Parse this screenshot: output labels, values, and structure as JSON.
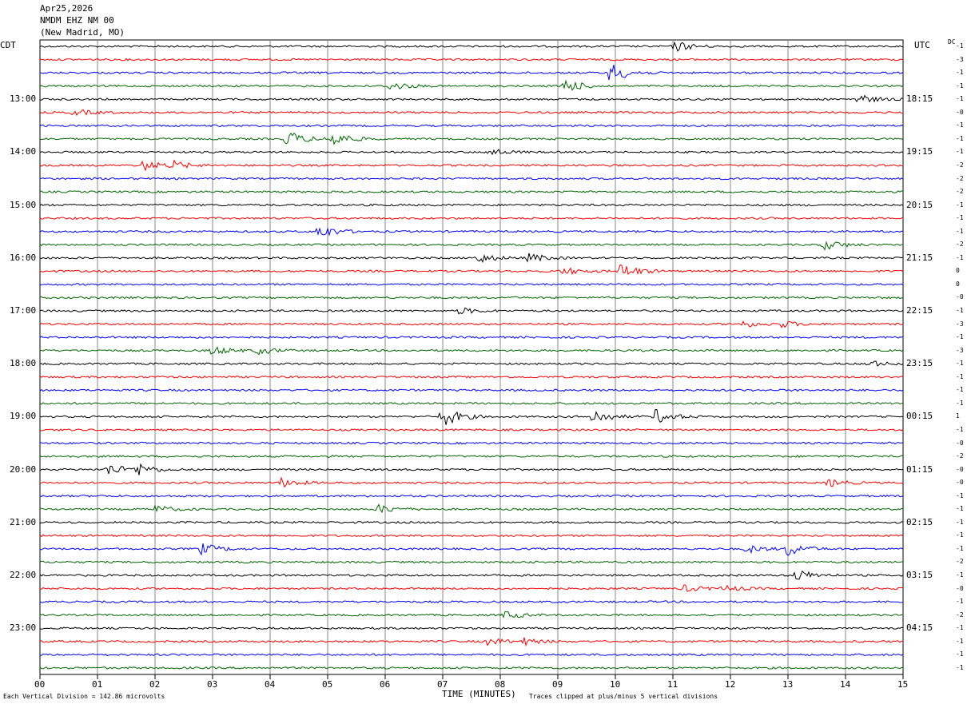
{
  "header": {
    "date": "Apr25,2026",
    "station": "NMDM EHZ NM 00",
    "location": "(New Madrid, MO)"
  },
  "left_label": "CDT",
  "right_label": "UTC",
  "dc_label": "DC",
  "x_axis": {
    "label": "TIME (MINUTES)",
    "ticks": [
      "00",
      "01",
      "02",
      "03",
      "04",
      "05",
      "06",
      "07",
      "08",
      "09",
      "10",
      "11",
      "12",
      "13",
      "14",
      "15"
    ]
  },
  "left_times": [
    "13:00",
    "14:00",
    "15:00",
    "16:00",
    "17:00",
    "18:00",
    "19:00",
    "20:00",
    "21:00",
    "22:00",
    "23:00"
  ],
  "right_times": [
    "18:15",
    "19:15",
    "20:15",
    "21:15",
    "22:15",
    "23:15",
    "00:15",
    "01:15",
    "02:15",
    "03:15",
    "04:15"
  ],
  "dc_values": [
    "-1",
    "-3",
    "-1",
    "-1",
    "-1",
    "-0",
    "-1",
    "-1",
    "-1",
    "-2",
    "-2",
    "-2",
    "-1",
    "-1",
    "-1",
    "-2",
    "-1",
    "0",
    "0",
    "-0",
    "-1",
    "-3",
    "-1",
    "-3",
    "-1",
    "-1",
    "-1",
    "-1",
    "1",
    "-1",
    "-0",
    "-2",
    "-0",
    "-0",
    "-1",
    "-1",
    "-1",
    "-1",
    "-1",
    "-2",
    "-1",
    "-0",
    "-1",
    "-2",
    "-1",
    "-1",
    "-1",
    "-1"
  ],
  "trace_colors": [
    "#000000",
    "#ff0000",
    "#0000ff",
    "#006400"
  ],
  "footer": {
    "scale": "Each Vertical Division =  142.86 microvolts",
    "clip": "Traces clipped at plus/minus 5 vertical divisions"
  },
  "events": [
    {
      "trace": 0,
      "minute": 11.05,
      "strength": 0.8
    },
    {
      "trace": 2,
      "minute": 9.92,
      "strength": 1.6
    },
    {
      "trace": 3,
      "minute": 9.1,
      "strength": 1.2
    },
    {
      "trace": 3,
      "minute": 6.1,
      "strength": 0.7
    },
    {
      "trace": 4,
      "minute": 14.2,
      "strength": 0.8
    },
    {
      "trace": 5,
      "minute": 0.6,
      "strength": 0.5
    },
    {
      "trace": 7,
      "minute": 4.3,
      "strength": 1.3
    },
    {
      "trace": 7,
      "minute": 5.1,
      "strength": 1.2
    },
    {
      "trace": 8,
      "minute": 7.8,
      "strength": 0.6
    },
    {
      "trace": 9,
      "minute": 1.8,
      "strength": 0.8
    },
    {
      "trace": 9,
      "minute": 2.3,
      "strength": 0.6
    },
    {
      "trace": 14,
      "minute": 4.85,
      "strength": 1.1
    },
    {
      "trace": 15,
      "minute": 13.65,
      "strength": 0.8
    },
    {
      "trace": 16,
      "minute": 7.6,
      "strength": 0.8
    },
    {
      "trace": 16,
      "minute": 8.5,
      "strength": 0.7
    },
    {
      "trace": 17,
      "minute": 10.1,
      "strength": 1.2
    },
    {
      "trace": 17,
      "minute": 9.1,
      "strength": 0.6
    },
    {
      "trace": 20,
      "minute": 7.3,
      "strength": 0.5
    },
    {
      "trace": 21,
      "minute": 12.2,
      "strength": 0.5
    },
    {
      "trace": 21,
      "minute": 12.9,
      "strength": 0.5
    },
    {
      "trace": 23,
      "minute": 3.0,
      "strength": 0.7
    },
    {
      "trace": 23,
      "minute": 3.8,
      "strength": 0.6
    },
    {
      "trace": 24,
      "minute": 14.4,
      "strength": 0.5
    },
    {
      "trace": 28,
      "minute": 7.0,
      "strength": 1.6
    },
    {
      "trace": 28,
      "minute": 9.6,
      "strength": 1.2
    },
    {
      "trace": 28,
      "minute": 10.7,
      "strength": 1.1
    },
    {
      "trace": 32,
      "minute": 1.2,
      "strength": 0.9
    },
    {
      "trace": 32,
      "minute": 1.7,
      "strength": 0.9
    },
    {
      "trace": 33,
      "minute": 4.2,
      "strength": 0.7
    },
    {
      "trace": 33,
      "minute": 13.7,
      "strength": 0.6
    },
    {
      "trace": 35,
      "minute": 2.0,
      "strength": 0.6
    },
    {
      "trace": 35,
      "minute": 5.9,
      "strength": 0.7
    },
    {
      "trace": 38,
      "minute": 2.8,
      "strength": 0.9
    },
    {
      "trace": 38,
      "minute": 12.3,
      "strength": 0.6
    },
    {
      "trace": 38,
      "minute": 13.0,
      "strength": 1.1
    },
    {
      "trace": 40,
      "minute": 13.15,
      "strength": 0.9
    },
    {
      "trace": 41,
      "minute": 11.2,
      "strength": 0.5
    },
    {
      "trace": 41,
      "minute": 11.9,
      "strength": 0.5
    },
    {
      "trace": 43,
      "minute": 8.1,
      "strength": 0.6
    },
    {
      "trace": 45,
      "minute": 7.8,
      "strength": 0.6
    },
    {
      "trace": 45,
      "minute": 8.4,
      "strength": 0.5
    }
  ]
}
